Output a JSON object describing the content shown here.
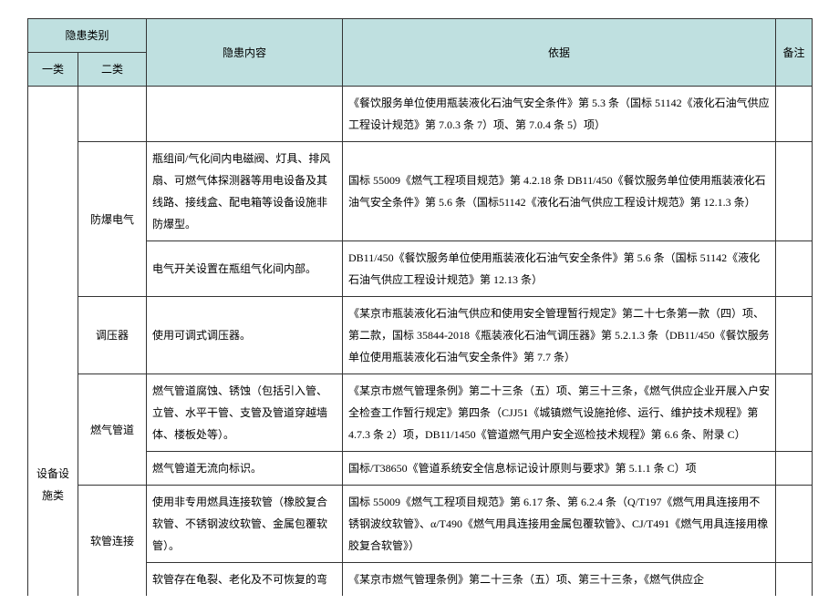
{
  "header": {
    "col_group": "隐患类别",
    "col1": "一类",
    "col2": "二类",
    "col3": "隐患内容",
    "col4": "依据",
    "col5": "备注"
  },
  "cat1": "设备设施类",
  "r0": {
    "content": "",
    "basis": "《餐饮服务单位使用瓶装液化石油气安全条件》第 5.3 条（国标 51142《液化石油气供应工程设计规范》第 7.0.3 条 7）项、第 7.0.4 条 5）项）"
  },
  "g1": {
    "cat2": "防爆电气",
    "r1": {
      "content": "瓶组间/气化间内电磁阀、灯具、排风扇、可燃气体探测器等用电设备及其线路、接线盒、配电箱等设备设施非防爆型。",
      "basis": "国标 55009《燃气工程项目规范》第 4.2.18 条\nDB11/450《餐饮服务单位使用瓶装液化石油气安全条件》第 5.6 条（国标51142《液化石油气供应工程设计规范》第 12.1.3 条）"
    },
    "r2": {
      "content": "电气开关设置在瓶组气化间内部。",
      "basis": "DB11/450《餐饮服务单位使用瓶装液化石油气安全条件》第 5.6 条（国标 51142《液化石油气供应工程设计规范》第 12.13 条）"
    }
  },
  "g2": {
    "cat2": "调压器",
    "r1": {
      "content": "使用可调式调压器。",
      "basis": "《某京市瓶装液化石油气供应和使用安全管理暂行规定》第二十七条第一款（四）项、第二款，国标 35844-2018《瓶装液化石油气调压器》第 5.2.1.3 条（DB11/450《餐饮服务单位使用瓶装液化石油气安全条件》第 7.7 条）"
    }
  },
  "g3": {
    "cat2": "燃气管道",
    "r1": {
      "content": "燃气管道腐蚀、锈蚀（包括引入管、立管、水平干管、支管及管道穿越墙体、楼板处等）。",
      "basis": "《某京市燃气管理条例》第二十三条（五）项、第三十三条，《燃气供应企业开展入户安全检查工作暂行规定》第四条（CJJ51《城镇燃气设施抢修、运行、维护技术规程》第 4.7.3 条 2）项，DB11/1450《管道燃气用户安全巡检技术规程》第 6.6 条、附录 C）"
    },
    "r2": {
      "content": "燃气管道无流向标识。",
      "basis": "国标/T38650《管道系统安全信息标记设计原则与要求》第 5.1.1 条 C）项"
    }
  },
  "g4": {
    "cat2": "软管连接",
    "r1": {
      "content": "使用非专用燃具连接软管（橡胶复合软管、不锈钢波纹软管、金属包覆软管）。",
      "basis": "国标 55009《燃气工程项目规范》第 6.17 条、第 6.2.4 条（Q/T197《燃气用具连接用不锈钢波纹软管》、α/T490《燃气用具连接用金属包覆软管》、CJ/T491《燃气用具连接用橡胶复合软管》）"
    },
    "r2": {
      "content": "软管存在龟裂、老化及不可恢复的弯",
      "basis": "《某京市燃气管理条例》第二十三条（五）项、第三十三条，《燃气供应企"
    }
  }
}
